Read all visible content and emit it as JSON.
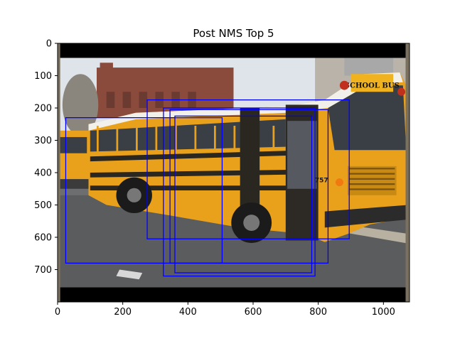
{
  "chart_data": {
    "type": "image",
    "title": "Post NMS Top 5",
    "xlim": [
      0,
      1080
    ],
    "ylim": [
      800,
      0
    ],
    "x_ticks": [
      0,
      200,
      400,
      600,
      800,
      1000
    ],
    "y_ticks": [
      0,
      100,
      200,
      300,
      400,
      500,
      600,
      700
    ],
    "image_content": "school-bus-street-photo",
    "image_text": [
      "SCHOOL BUS",
      "757"
    ],
    "box_color": "#0000ff",
    "boxes": [
      {
        "x0": 25,
        "y0": 230,
        "x1": 505,
        "y1": 680
      },
      {
        "x0": 275,
        "y0": 175,
        "x1": 895,
        "y1": 605
      },
      {
        "x0": 325,
        "y0": 200,
        "x1": 790,
        "y1": 720
      },
      {
        "x0": 345,
        "y0": 205,
        "x1": 830,
        "y1": 680
      },
      {
        "x0": 360,
        "y0": 225,
        "x1": 780,
        "y1": 710
      }
    ],
    "colors": {
      "letterbox": "#000000",
      "frame_side": "#7a7060",
      "sky": "#dfe3ea",
      "road": "#5b5c5e",
      "bus_yellow": "#e9a11b",
      "bus_dark": "#2a2620",
      "brick": "#8a4a3c",
      "window": "#3a3f46"
    }
  }
}
